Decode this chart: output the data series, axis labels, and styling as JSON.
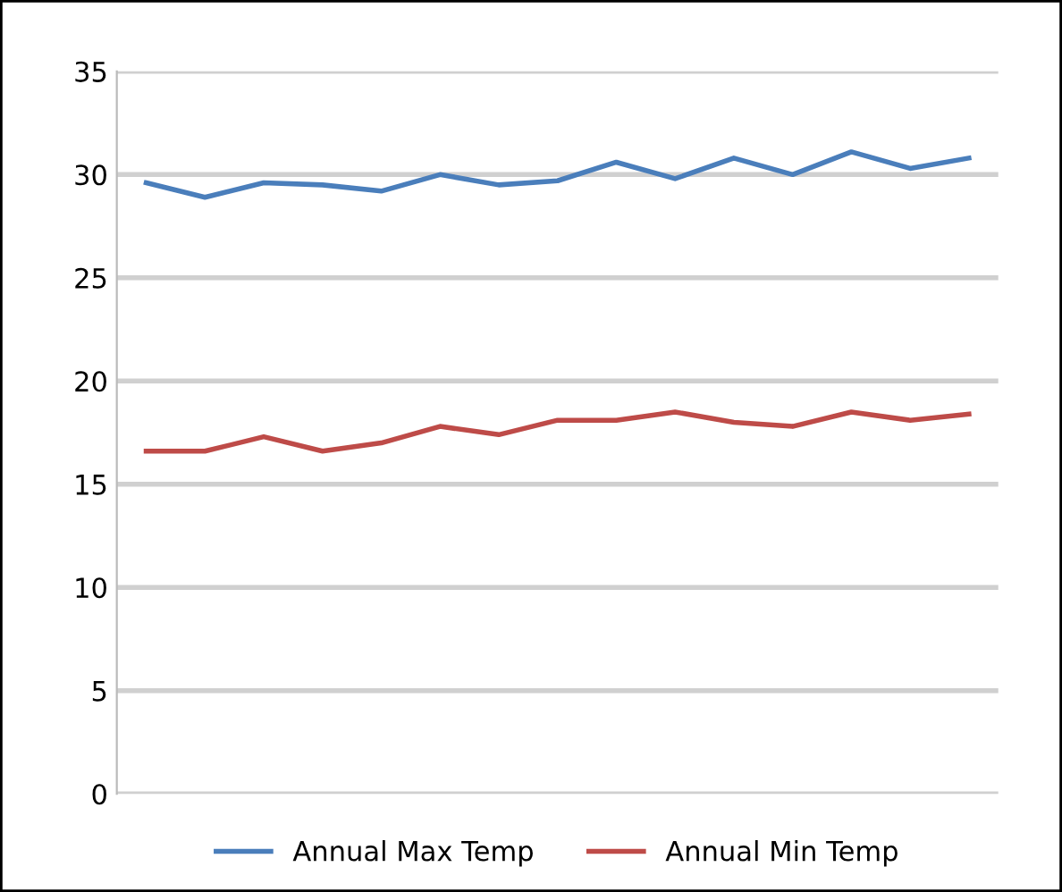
{
  "chart_data": {
    "type": "line",
    "categories": [
      null,
      null,
      null,
      null,
      null,
      null,
      null,
      null,
      null,
      null,
      null,
      null,
      null,
      null,
      null
    ],
    "series": [
      {
        "name": "Annual Max Temp",
        "color": "#4a7ebb",
        "values": [
          29.6,
          28.9,
          29.6,
          29.5,
          29.2,
          30.0,
          29.5,
          29.7,
          30.6,
          29.8,
          30.8,
          30.0,
          31.1,
          30.3,
          30.8
        ]
      },
      {
        "name": "Annual Min Temp",
        "color": "#be4b48",
        "values": [
          16.6,
          16.6,
          17.3,
          16.6,
          17.0,
          17.8,
          17.4,
          18.1,
          18.1,
          18.5,
          18.0,
          17.8,
          18.5,
          18.1,
          18.4
        ]
      }
    ],
    "ylim": [
      0,
      35
    ],
    "yticks": [
      0,
      5,
      10,
      15,
      20,
      25,
      30,
      35
    ],
    "grid": "y",
    "legend": "bottom",
    "marker": "none",
    "line_style": "solid"
  }
}
